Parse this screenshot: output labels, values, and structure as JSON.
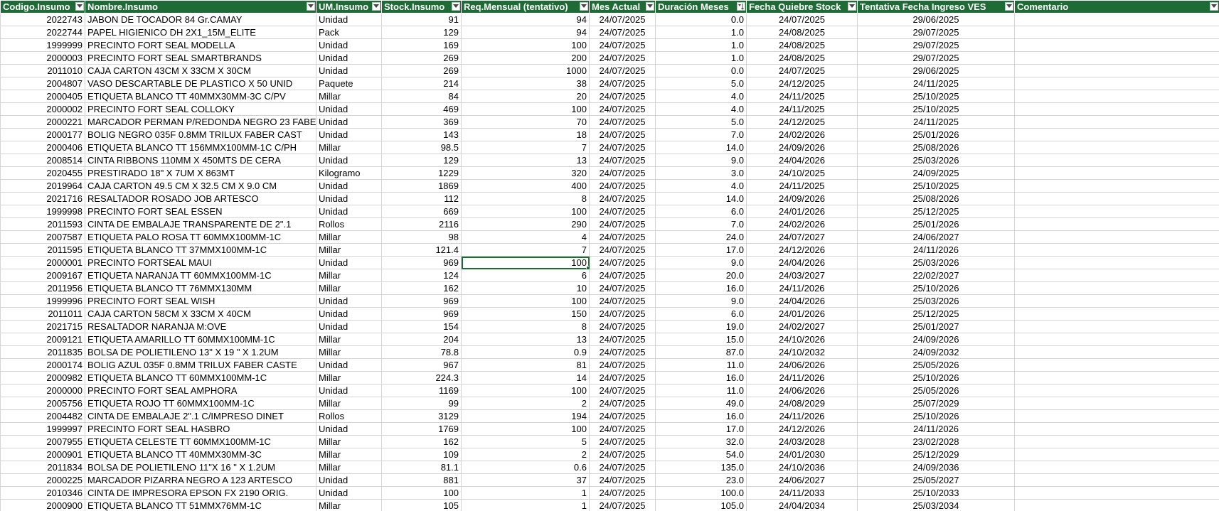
{
  "colors": {
    "header_bg": "#1e6b35",
    "header_text": "#ffffff",
    "grid_line": "#d4d4d4",
    "selection": "#1e6b35"
  },
  "headers": [
    {
      "label": "Codigo.Insumo",
      "filter": "filter-dropdown-icon"
    },
    {
      "label": "Nombre.Insumo",
      "filter": "filter-dropdown-icon"
    },
    {
      "label": "UM.Insumo",
      "filter": "filter-dropdown-icon"
    },
    {
      "label": "Stock.Insumo",
      "filter": "filter-dropdown-icon"
    },
    {
      "label": "Req.Mensual (tentativo)",
      "filter": "filter-dropdown-icon"
    },
    {
      "label": "Mes Actual",
      "filter": "filter-dropdown-icon"
    },
    {
      "label": "Duración Meses",
      "filter": "sort-ascending-filter-icon"
    },
    {
      "label": "Fecha Quiebre Stock",
      "filter": "filter-dropdown-icon"
    },
    {
      "label": "Tentativa Fecha Ingreso VES",
      "filter": "filter-dropdown-icon"
    },
    {
      "label": "Comentario",
      "filter": "filter-dropdown-icon"
    }
  ],
  "selected_cell": {
    "row": 19,
    "col": 4
  },
  "rows": [
    [
      "2022743",
      "JABON DE TOCADOR 84 Gr.CAMAY",
      "Unidad",
      "91",
      "94",
      "24/07/2025",
      "0.0",
      "24/07/2025",
      "29/06/2025",
      ""
    ],
    [
      "2022744",
      "PAPEL HIGIENICO DH 2X1_15M_ELITE",
      "Pack",
      "129",
      "94",
      "24/07/2025",
      "1.0",
      "24/08/2025",
      "29/07/2025",
      ""
    ],
    [
      "1999999",
      "PRECINTO FORT SEAL MODELLA",
      "Unidad",
      "169",
      "100",
      "24/07/2025",
      "1.0",
      "24/08/2025",
      "29/07/2025",
      ""
    ],
    [
      "2000003",
      "PRECINTO FORT SEAL SMARTBRANDS",
      "Unidad",
      "269",
      "200",
      "24/07/2025",
      "1.0",
      "24/08/2025",
      "29/07/2025",
      ""
    ],
    [
      "2011010",
      "CAJA CARTON 43CM X 33CM X 30CM",
      "Unidad",
      "269",
      "1000",
      "24/07/2025",
      "0.0",
      "24/07/2025",
      "29/06/2025",
      ""
    ],
    [
      "2004807",
      "VASO DESCARTABLE DE PLASTICO X 50 UNID",
      "Paquete",
      "214",
      "38",
      "24/07/2025",
      "5.0",
      "24/12/2025",
      "24/11/2025",
      ""
    ],
    [
      "2000405",
      "ETIQUETA BLANCO TT 40MMX30MM-3C C/PV",
      "Millar",
      "84",
      "20",
      "24/07/2025",
      "4.0",
      "24/11/2025",
      "25/10/2025",
      ""
    ],
    [
      "2000002",
      "PRECINTO FORT SEAL COLLOKY",
      "Unidad",
      "469",
      "100",
      "24/07/2025",
      "4.0",
      "24/11/2025",
      "25/10/2025",
      ""
    ],
    [
      "2000221",
      "MARCADOR PERMAN P/REDONDA NEGRO 23 FABER",
      "Unidad",
      "369",
      "70",
      "24/07/2025",
      "5.0",
      "24/12/2025",
      "24/11/2025",
      ""
    ],
    [
      "2000177",
      "BOLIG NEGRO 035F 0.8MM TRILUX FABER CAST",
      "Unidad",
      "143",
      "18",
      "24/07/2025",
      "7.0",
      "24/02/2026",
      "25/01/2026",
      ""
    ],
    [
      "2000406",
      "ETIQUETA BLANCO TT 156MMX100MM-1C C/PH",
      "Millar",
      "98.5",
      "7",
      "24/07/2025",
      "14.0",
      "24/09/2026",
      "25/08/2026",
      ""
    ],
    [
      "2008514",
      "CINTA RIBBONS 110MM X 450MTS DE CERA",
      "Unidad",
      "129",
      "13",
      "24/07/2025",
      "9.0",
      "24/04/2026",
      "25/03/2026",
      ""
    ],
    [
      "2020455",
      "PRESTIRADO  18\" X 7UM X 863MT",
      "Kilogramo",
      "1229",
      "320",
      "24/07/2025",
      "3.0",
      "24/10/2025",
      "24/09/2025",
      ""
    ],
    [
      "2019964",
      "CAJA CARTON 49.5 CM X 32.5 CM X 9.0 CM",
      "Unidad",
      "1869",
      "400",
      "24/07/2025",
      "4.0",
      "24/11/2025",
      "25/10/2025",
      ""
    ],
    [
      "2021716",
      "RESALTADOR ROSADO JOB ARTESCO",
      "Unidad",
      "112",
      "8",
      "24/07/2025",
      "14.0",
      "24/09/2026",
      "25/08/2026",
      ""
    ],
    [
      "1999998",
      "PRECINTO FORT SEAL ESSEN",
      "Unidad",
      "669",
      "100",
      "24/07/2025",
      "6.0",
      "24/01/2026",
      "25/12/2025",
      ""
    ],
    [
      "2011593",
      "CINTA DE EMBALAJE TRANSPARENTE DE 2\".1",
      "Rollos",
      "2116",
      "290",
      "24/07/2025",
      "7.0",
      "24/02/2026",
      "25/01/2026",
      ""
    ],
    [
      "2007587",
      "ETIQUETA PALO ROSA TT 60MMX100MM-1C",
      "Millar",
      "98",
      "4",
      "24/07/2025",
      "24.0",
      "24/07/2027",
      "24/06/2027",
      ""
    ],
    [
      "2011595",
      "ETIQUETA BLANCO TT 37MMX100MM-1C",
      "Millar",
      "121.4",
      "7",
      "24/07/2025",
      "17.0",
      "24/12/2026",
      "24/11/2026",
      ""
    ],
    [
      "2000001",
      "PRECINTO FORTSEAL MAUI",
      "Unidad",
      "969",
      "100",
      "24/07/2025",
      "9.0",
      "24/04/2026",
      "25/03/2026",
      ""
    ],
    [
      "2009167",
      "ETIQUETA NARANJA TT 60MMX100MM-1C",
      "Millar",
      "124",
      "6",
      "24/07/2025",
      "20.0",
      "24/03/2027",
      "22/02/2027",
      ""
    ],
    [
      "2011956",
      "ETIQUETA BLANCO TT 76MMX130MM",
      "Millar",
      "162",
      "10",
      "24/07/2025",
      "16.0",
      "24/11/2026",
      "25/10/2026",
      ""
    ],
    [
      "1999996",
      "PRECINTO FORT SEAL WISH",
      "Unidad",
      "969",
      "100",
      "24/07/2025",
      "9.0",
      "24/04/2026",
      "25/03/2026",
      ""
    ],
    [
      "2011011",
      "CAJA CARTON 58CM X 33CM X 40CM",
      "Unidad",
      "969",
      "150",
      "24/07/2025",
      "6.0",
      "24/01/2026",
      "25/12/2025",
      ""
    ],
    [
      "2021715",
      "RESALTADOR NARANJA M:OVE",
      "Unidad",
      "154",
      "8",
      "24/07/2025",
      "19.0",
      "24/02/2027",
      "25/01/2027",
      ""
    ],
    [
      "2009121",
      "ETIQUETA AMARILLO TT 60MMX100MM-1C",
      "Millar",
      "204",
      "13",
      "24/07/2025",
      "15.0",
      "24/10/2026",
      "24/09/2026",
      ""
    ],
    [
      "2011835",
      "BOLSA DE POLIETILENO 13\" X 19 \" X 1.2UM",
      "Millar",
      "78.8",
      "0.9",
      "24/07/2025",
      "87.0",
      "24/10/2032",
      "24/09/2032",
      ""
    ],
    [
      "2000174",
      "BOLIG AZUL 035F 0.8MM TRILUX FABER CASTE",
      "Unidad",
      "967",
      "81",
      "24/07/2025",
      "11.0",
      "24/06/2026",
      "25/05/2026",
      ""
    ],
    [
      "2000982",
      "ETIQUETA BLANCO TT 60MMX100MM-1C",
      "Millar",
      "224.3",
      "14",
      "24/07/2025",
      "16.0",
      "24/11/2026",
      "25/10/2026",
      ""
    ],
    [
      "2000000",
      "PRECINTO FORT SEAL AMPHORA",
      "Unidad",
      "1169",
      "100",
      "24/07/2025",
      "11.0",
      "24/06/2026",
      "25/05/2026",
      ""
    ],
    [
      "2005756",
      "ETIQUETA ROJO TT 60MMX100MM-1C",
      "Millar",
      "99",
      "2",
      "24/07/2025",
      "49.0",
      "24/08/2029",
      "25/07/2029",
      ""
    ],
    [
      "2004482",
      "CINTA DE EMBALAJE 2\".1 C/IMPRESO DINET",
      "Rollos",
      "3129",
      "194",
      "24/07/2025",
      "16.0",
      "24/11/2026",
      "25/10/2026",
      ""
    ],
    [
      "1999997",
      "PRECINTO FORT SEAL HASBRO",
      "Unidad",
      "1769",
      "100",
      "24/07/2025",
      "17.0",
      "24/12/2026",
      "24/11/2026",
      ""
    ],
    [
      "2007955",
      "ETIQUETA CELESTE TT 60MMX100MM-1C",
      "Millar",
      "162",
      "5",
      "24/07/2025",
      "32.0",
      "24/03/2028",
      "23/02/2028",
      ""
    ],
    [
      "2000901",
      "ETIQUETA BLANCO TT 40MMX30MM-3C",
      "Millar",
      "109",
      "2",
      "24/07/2025",
      "54.0",
      "24/01/2030",
      "25/12/2029",
      ""
    ],
    [
      "2011834",
      "BOLSA DE POLIETILENO 11\"X 16 \" X 1.2UM",
      "Millar",
      "81.1",
      "0.6",
      "24/07/2025",
      "135.0",
      "24/10/2036",
      "24/09/2036",
      ""
    ],
    [
      "2000225",
      "MARCADOR PIZARRA NEGRO A 123 ARTESCO",
      "Unidad",
      "881",
      "37",
      "24/07/2025",
      "23.0",
      "24/06/2027",
      "25/05/2027",
      ""
    ],
    [
      "2010346",
      "CINTA DE IMPRESORA EPSON FX 2190 ORIG.",
      "Unidad",
      "100",
      "1",
      "24/07/2025",
      "100.0",
      "24/11/2033",
      "25/10/2033",
      ""
    ],
    [
      "2000900",
      "ETIQUETA BLANCO TT 51MMX76MM-1C",
      "Millar",
      "105",
      "1",
      "24/07/2025",
      "105.0",
      "24/04/2034",
      "25/03/2034",
      ""
    ]
  ]
}
